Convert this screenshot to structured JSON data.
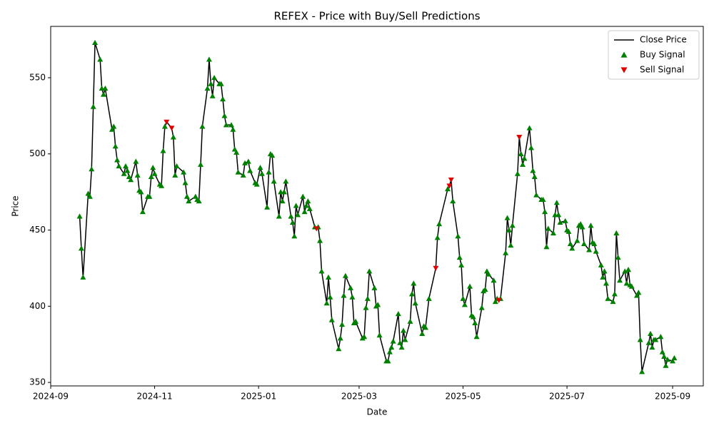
{
  "chart_data": {
    "type": "line",
    "title": "REFEX - Price with Buy/Sell Predictions",
    "x_label": "Date",
    "y_label": "Price",
    "xlim": [
      "2024-09-01",
      "2025-09-19"
    ],
    "xticks": [
      {
        "value": "2024-09-01",
        "label": "2024-09"
      },
      {
        "value": "2024-11-01",
        "label": "2024-11"
      },
      {
        "value": "2025-01-01",
        "label": "2025-01"
      },
      {
        "value": "2025-03-01",
        "label": "2025-03"
      },
      {
        "value": "2025-05-01",
        "label": "2025-05"
      },
      {
        "value": "2025-07-01",
        "label": "2025-07"
      },
      {
        "value": "2025-09-01",
        "label": "2025-09"
      }
    ],
    "ylim": [
      347.7,
      583.7
    ],
    "yticks": [
      350,
      400,
      450,
      500,
      550
    ],
    "grid": false,
    "legend": "upper right",
    "series": [
      {
        "name": "Close Price",
        "color": "#000000",
        "kind": "line",
        "x": [
          "2024-09-18",
          "2024-09-19",
          "2024-09-20",
          "2024-09-23",
          "2024-09-24",
          "2024-09-25",
          "2024-09-26",
          "2024-09-27",
          "2024-09-30",
          "2024-10-01",
          "2024-10-02",
          "2024-10-03",
          "2024-10-07",
          "2024-10-08",
          "2024-10-09",
          "2024-10-10",
          "2024-10-11",
          "2024-10-14",
          "2024-10-15",
          "2024-10-16",
          "2024-10-17",
          "2024-10-18",
          "2024-10-21",
          "2024-10-22",
          "2024-10-23",
          "2024-10-24",
          "2024-10-25",
          "2024-10-28",
          "2024-10-29",
          "2024-10-30",
          "2024-10-31",
          "2024-11-01",
          "2024-11-04",
          "2024-11-05",
          "2024-11-06",
          "2024-11-07",
          "2024-11-08",
          "2024-11-11",
          "2024-11-12",
          "2024-11-13",
          "2024-11-14",
          "2024-11-18",
          "2024-11-19",
          "2024-11-20",
          "2024-11-21",
          "2024-11-25",
          "2024-11-26",
          "2024-11-27",
          "2024-11-28",
          "2024-11-29",
          "2024-12-02",
          "2024-12-03",
          "2024-12-04",
          "2024-12-05",
          "2024-12-06",
          "2024-12-09",
          "2024-12-10",
          "2024-12-11",
          "2024-12-12",
          "2024-12-13",
          "2024-12-16",
          "2024-12-17",
          "2024-12-18",
          "2024-12-19",
          "2024-12-20",
          "2024-12-23",
          "2024-12-24",
          "2024-12-26",
          "2024-12-27",
          "2024-12-30",
          "2024-12-31",
          "2025-01-02",
          "2025-01-03",
          "2025-01-06",
          "2025-01-07",
          "2025-01-08",
          "2025-01-09",
          "2025-01-10",
          "2025-01-13",
          "2025-01-14",
          "2025-01-15",
          "2025-01-16",
          "2025-01-17",
          "2025-01-20",
          "2025-01-21",
          "2025-01-22",
          "2025-01-23",
          "2025-01-24",
          "2025-01-27",
          "2025-01-28",
          "2025-01-29",
          "2025-01-30",
          "2025-01-31",
          "2025-02-03",
          "2025-02-04",
          "2025-02-05",
          "2025-02-06",
          "2025-02-07",
          "2025-02-10",
          "2025-02-11",
          "2025-02-12",
          "2025-02-13",
          "2025-02-17",
          "2025-02-18",
          "2025-02-19",
          "2025-02-20",
          "2025-02-21",
          "2025-02-24",
          "2025-02-25",
          "2025-02-26",
          "2025-02-27",
          "2025-03-03",
          "2025-03-04",
          "2025-03-05",
          "2025-03-06",
          "2025-03-07",
          "2025-03-10",
          "2025-03-11",
          "2025-03-12",
          "2025-03-13",
          "2025-03-17",
          "2025-03-18",
          "2025-03-19",
          "2025-03-20",
          "2025-03-21",
          "2025-03-24",
          "2025-03-25",
          "2025-03-26",
          "2025-03-27",
          "2025-03-28",
          "2025-03-31",
          "2025-04-01",
          "2025-04-02",
          "2025-04-03",
          "2025-04-07",
          "2025-04-08",
          "2025-04-09",
          "2025-04-11",
          "2025-04-15",
          "2025-04-16",
          "2025-04-17",
          "2025-04-22",
          "2025-04-23",
          "2025-04-24",
          "2025-04-25",
          "2025-04-28",
          "2025-04-29",
          "2025-04-30",
          "2025-05-01",
          "2025-05-02",
          "2025-05-05",
          "2025-05-06",
          "2025-05-07",
          "2025-05-08",
          "2025-05-09",
          "2025-05-12",
          "2025-05-13",
          "2025-05-14",
          "2025-05-15",
          "2025-05-16",
          "2025-05-19",
          "2025-05-20",
          "2025-05-21",
          "2025-05-22",
          "2025-05-23",
          "2025-05-26",
          "2025-05-27",
          "2025-05-28",
          "2025-05-29",
          "2025-05-30",
          "2025-06-02",
          "2025-06-03",
          "2025-06-04",
          "2025-06-05",
          "2025-06-06",
          "2025-06-09",
          "2025-06-10",
          "2025-06-11",
          "2025-06-12",
          "2025-06-13",
          "2025-06-16",
          "2025-06-17",
          "2025-06-18",
          "2025-06-19",
          "2025-06-20",
          "2025-06-23",
          "2025-06-24",
          "2025-06-25",
          "2025-06-26",
          "2025-06-27",
          "2025-06-30",
          "2025-07-01",
          "2025-07-02",
          "2025-07-03",
          "2025-07-04",
          "2025-07-07",
          "2025-07-08",
          "2025-07-09",
          "2025-07-10",
          "2025-07-11",
          "2025-07-14",
          "2025-07-15",
          "2025-07-16",
          "2025-07-17",
          "2025-07-18",
          "2025-07-21",
          "2025-07-22",
          "2025-07-23",
          "2025-07-24",
          "2025-07-25",
          "2025-07-28",
          "2025-07-29",
          "2025-07-30",
          "2025-07-31",
          "2025-08-01",
          "2025-08-04",
          "2025-08-05",
          "2025-08-06",
          "2025-08-07",
          "2025-08-08",
          "2025-08-11",
          "2025-08-12",
          "2025-08-13",
          "2025-08-14",
          "2025-08-18",
          "2025-08-19",
          "2025-08-20",
          "2025-08-21",
          "2025-08-22",
          "2025-08-25",
          "2025-08-26",
          "2025-08-27",
          "2025-08-28",
          "2025-08-29",
          "2025-09-01",
          "2025-09-02"
        ],
        "values": [
          459,
          438,
          419,
          474,
          472,
          490,
          531,
          573,
          562,
          543,
          539,
          543,
          516,
          518,
          505,
          496,
          492,
          487,
          492,
          489,
          485,
          483,
          495,
          486,
          476,
          475,
          462,
          472,
          472,
          485,
          491,
          487,
          480,
          479,
          502,
          518,
          521,
          517,
          511,
          486,
          492,
          488,
          481,
          472,
          469,
          472,
          470,
          469,
          493,
          518,
          543,
          562,
          546,
          538,
          550,
          546,
          546,
          536,
          525,
          519,
          519,
          516,
          503,
          501,
          488,
          486,
          494,
          495,
          489,
          481,
          480,
          491,
          487,
          465,
          488,
          500,
          499,
          482,
          459,
          475,
          469,
          475,
          482,
          459,
          455,
          446,
          466,
          460,
          472,
          462,
          466,
          469,
          464,
          452,
          451,
          452,
          443,
          423,
          402,
          419,
          406,
          391,
          372,
          379,
          388,
          407,
          420,
          412,
          406,
          389,
          390,
          379,
          380,
          399,
          405,
          423,
          412,
          400,
          401,
          381,
          364,
          364,
          370,
          373,
          377,
          395,
          376,
          373,
          384,
          378,
          390,
          408,
          415,
          402,
          382,
          387,
          386,
          405,
          425,
          445,
          454,
          477,
          479,
          483,
          469,
          446,
          432,
          427,
          405,
          401,
          413,
          394,
          393,
          389,
          380,
          399,
          410,
          411,
          423,
          421,
          417,
          403,
          405,
          404,
          405,
          435,
          458,
          450,
          440,
          453,
          487,
          511,
          500,
          493,
          497,
          517,
          504,
          489,
          485,
          473,
          470,
          470,
          462,
          439,
          451,
          448,
          460,
          468,
          460,
          455,
          456,
          450,
          449,
          441,
          438,
          443,
          453,
          454,
          452,
          441,
          437,
          453,
          442,
          441,
          436,
          427,
          419,
          423,
          415,
          405,
          403,
          408,
          448,
          432,
          417,
          423,
          415,
          424,
          414,
          413,
          407,
          409,
          378,
          357,
          376,
          382,
          373,
          378,
          378,
          380,
          370,
          367,
          361,
          365,
          364,
          366
        ]
      },
      {
        "name": "Buy Signal",
        "color": "#008000",
        "kind": "scatter",
        "marker": "^",
        "x": [
          "2024-09-18",
          "2024-09-19",
          "2024-09-20",
          "2024-09-23",
          "2024-09-24",
          "2024-09-25",
          "2024-09-26",
          "2024-09-27",
          "2024-09-30",
          "2024-10-01",
          "2024-10-02",
          "2024-10-03",
          "2024-10-07",
          "2024-10-08",
          "2024-10-09",
          "2024-10-10",
          "2024-10-11",
          "2024-10-14",
          "2024-10-15",
          "2024-10-16",
          "2024-10-17",
          "2024-10-18",
          "2024-10-21",
          "2024-10-22",
          "2024-10-23",
          "2024-10-24",
          "2024-10-25",
          "2024-10-28",
          "2024-10-29",
          "2024-10-30",
          "2024-10-31",
          "2024-11-01",
          "2024-11-04",
          "2024-11-05",
          "2024-11-06",
          "2024-11-07",
          "2024-11-12",
          "2024-11-13",
          "2024-11-14",
          "2024-11-18",
          "2024-11-19",
          "2024-11-20",
          "2024-11-21",
          "2024-11-25",
          "2024-11-26",
          "2024-11-27",
          "2024-11-28",
          "2024-11-29",
          "2024-12-02",
          "2024-12-03",
          "2024-12-04",
          "2024-12-05",
          "2024-12-06",
          "2024-12-09",
          "2024-12-10",
          "2024-12-11",
          "2024-12-12",
          "2024-12-13",
          "2024-12-16",
          "2024-12-17",
          "2024-12-18",
          "2024-12-19",
          "2024-12-20",
          "2024-12-23",
          "2024-12-24",
          "2024-12-26",
          "2024-12-27",
          "2024-12-30",
          "2024-12-31",
          "2025-01-02",
          "2025-01-03",
          "2025-01-06",
          "2025-01-07",
          "2025-01-08",
          "2025-01-09",
          "2025-01-10",
          "2025-01-13",
          "2025-01-14",
          "2025-01-15",
          "2025-01-16",
          "2025-01-17",
          "2025-01-20",
          "2025-01-21",
          "2025-01-22",
          "2025-01-23",
          "2025-01-24",
          "2025-01-27",
          "2025-01-28",
          "2025-01-29",
          "2025-01-30",
          "2025-01-31",
          "2025-02-03",
          "2025-02-05",
          "2025-02-06",
          "2025-02-07",
          "2025-02-10",
          "2025-02-11",
          "2025-02-12",
          "2025-02-13",
          "2025-02-17",
          "2025-02-18",
          "2025-02-19",
          "2025-02-20",
          "2025-02-21",
          "2025-02-24",
          "2025-02-25",
          "2025-02-26",
          "2025-02-27",
          "2025-03-03",
          "2025-03-04",
          "2025-03-05",
          "2025-03-06",
          "2025-03-07",
          "2025-03-10",
          "2025-03-11",
          "2025-03-12",
          "2025-03-13",
          "2025-03-17",
          "2025-03-18",
          "2025-03-19",
          "2025-03-20",
          "2025-03-21",
          "2025-03-24",
          "2025-03-25",
          "2025-03-26",
          "2025-03-27",
          "2025-03-28",
          "2025-03-31",
          "2025-04-01",
          "2025-04-02",
          "2025-04-03",
          "2025-04-07",
          "2025-04-08",
          "2025-04-09",
          "2025-04-11",
          "2025-04-16",
          "2025-04-17",
          "2025-04-22",
          "2025-04-25",
          "2025-04-28",
          "2025-04-29",
          "2025-04-30",
          "2025-05-01",
          "2025-05-02",
          "2025-05-05",
          "2025-05-06",
          "2025-05-07",
          "2025-05-08",
          "2025-05-09",
          "2025-05-12",
          "2025-05-13",
          "2025-05-14",
          "2025-05-15",
          "2025-05-16",
          "2025-05-19",
          "2025-05-20",
          "2025-05-21",
          "2025-05-23",
          "2025-05-26",
          "2025-05-27",
          "2025-05-28",
          "2025-05-29",
          "2025-05-30",
          "2025-06-02",
          "2025-06-04",
          "2025-06-05",
          "2025-06-06",
          "2025-06-09",
          "2025-06-10",
          "2025-06-11",
          "2025-06-12",
          "2025-06-13",
          "2025-06-16",
          "2025-06-17",
          "2025-06-18",
          "2025-06-19",
          "2025-06-20",
          "2025-06-23",
          "2025-06-24",
          "2025-06-25",
          "2025-06-26",
          "2025-06-27",
          "2025-06-30",
          "2025-07-01",
          "2025-07-02",
          "2025-07-03",
          "2025-07-04",
          "2025-07-07",
          "2025-07-08",
          "2025-07-09",
          "2025-07-10",
          "2025-07-11",
          "2025-07-14",
          "2025-07-15",
          "2025-07-16",
          "2025-07-17",
          "2025-07-18",
          "2025-07-21",
          "2025-07-22",
          "2025-07-23",
          "2025-07-24",
          "2025-07-25",
          "2025-07-28",
          "2025-07-29",
          "2025-07-30",
          "2025-07-31",
          "2025-08-01",
          "2025-08-04",
          "2025-08-05",
          "2025-08-06",
          "2025-08-07",
          "2025-08-08",
          "2025-08-11",
          "2025-08-12",
          "2025-08-13",
          "2025-08-14",
          "2025-08-18",
          "2025-08-19",
          "2025-08-20",
          "2025-08-21",
          "2025-08-22",
          "2025-08-25",
          "2025-08-26",
          "2025-08-27",
          "2025-08-28",
          "2025-08-29",
          "2025-09-01",
          "2025-09-02"
        ],
        "values": [
          459,
          438,
          419,
          474,
          472,
          490,
          531,
          573,
          562,
          543,
          539,
          543,
          516,
          518,
          505,
          496,
          492,
          487,
          492,
          489,
          485,
          483,
          495,
          486,
          476,
          475,
          462,
          472,
          472,
          485,
          491,
          487,
          480,
          479,
          502,
          518,
          511,
          486,
          492,
          488,
          481,
          472,
          469,
          472,
          470,
          469,
          493,
          518,
          543,
          562,
          546,
          538,
          550,
          546,
          546,
          536,
          525,
          519,
          519,
          516,
          503,
          501,
          488,
          486,
          494,
          495,
          489,
          481,
          480,
          491,
          487,
          465,
          488,
          500,
          499,
          482,
          459,
          475,
          469,
          475,
          482,
          459,
          455,
          446,
          466,
          460,
          472,
          462,
          466,
          469,
          464,
          452,
          452,
          443,
          423,
          402,
          419,
          406,
          391,
          372,
          379,
          388,
          407,
          420,
          412,
          406,
          389,
          390,
          379,
          380,
          399,
          405,
          423,
          412,
          400,
          401,
          381,
          364,
          364,
          370,
          373,
          377,
          395,
          376,
          373,
          384,
          378,
          390,
          408,
          415,
          402,
          382,
          387,
          386,
          405,
          445,
          454,
          477,
          469,
          446,
          432,
          427,
          405,
          401,
          413,
          394,
          393,
          389,
          380,
          399,
          410,
          411,
          423,
          421,
          417,
          403,
          405,
          405,
          435,
          458,
          450,
          440,
          453,
          487,
          500,
          493,
          497,
          517,
          504,
          489,
          485,
          473,
          470,
          470,
          462,
          439,
          451,
          448,
          460,
          468,
          460,
          455,
          456,
          450,
          449,
          441,
          438,
          443,
          453,
          454,
          452,
          441,
          437,
          453,
          442,
          441,
          436,
          427,
          419,
          423,
          415,
          405,
          403,
          408,
          448,
          432,
          417,
          423,
          415,
          424,
          414,
          413,
          407,
          409,
          378,
          357,
          376,
          382,
          373,
          378,
          378,
          380,
          370,
          367,
          361,
          365,
          364,
          366
        ]
      },
      {
        "name": "Sell Signal",
        "color": "#e00000",
        "kind": "scatter",
        "marker": "v",
        "x": [
          "2024-11-08",
          "2024-11-11",
          "2025-02-04",
          "2025-04-15",
          "2025-04-23",
          "2025-04-24",
          "2025-05-22",
          "2025-06-03"
        ],
        "values": [
          521,
          517,
          451,
          425,
          479,
          483,
          404,
          511
        ]
      }
    ]
  }
}
